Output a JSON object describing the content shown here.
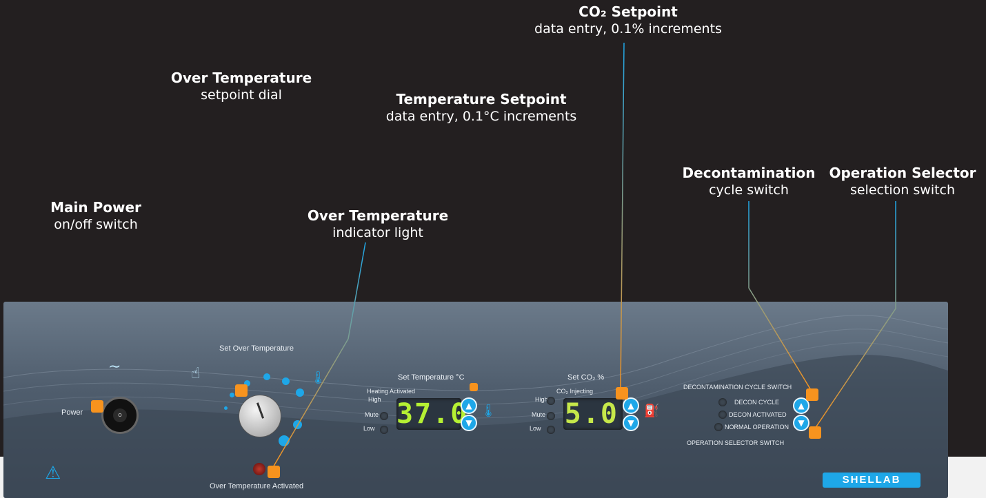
{
  "callouts": {
    "co2": {
      "title": "CO₂ Setpoint",
      "subtitle": "data entry, 0.1% increments"
    },
    "over_temp_dial": {
      "title": "Over Temperature",
      "subtitle": "setpoint dial"
    },
    "temp_setpoint": {
      "title": "Temperature Setpoint",
      "subtitle": "data entry, 0.1°C increments"
    },
    "main_power": {
      "title": "Main Power",
      "subtitle": "on/off switch"
    },
    "over_temp_light": {
      "title": "Over Temperature",
      "subtitle": "indicator light"
    },
    "decon": {
      "title": "Decontamination",
      "subtitle": "cycle switch"
    },
    "op_selector": {
      "title": "Operation Selector",
      "subtitle": "selection switch"
    }
  },
  "panel": {
    "power_label": "Power",
    "set_over_temp_label": "Set Over Temperature",
    "over_temp_activated": "Over Temperature Activated",
    "set_temp_label": "Set Temperature °C",
    "heating_activated": "Heating Activated",
    "high": "High",
    "mute": "Mute",
    "low": "Low",
    "temp_display": "37.0",
    "set_co2_label": "Set CO₂ %",
    "co2_injecting": "CO₂ Injecting",
    "co2_display": "5.0",
    "decon_cycle_switch": "DECONTAMINATION CYCLE SWITCH",
    "decon_cycle": "DECON CYCLE",
    "decon_activated": "DECON ACTIVATED",
    "normal_operation": "NORMAL OPERATION",
    "operation_selector_switch": "OPERATION SELECTOR SWITCH",
    "brand": "SHELLAB"
  },
  "colors": {
    "accent": "#1ea7e8",
    "marker": "#f7931e",
    "display": "#b5f033"
  }
}
